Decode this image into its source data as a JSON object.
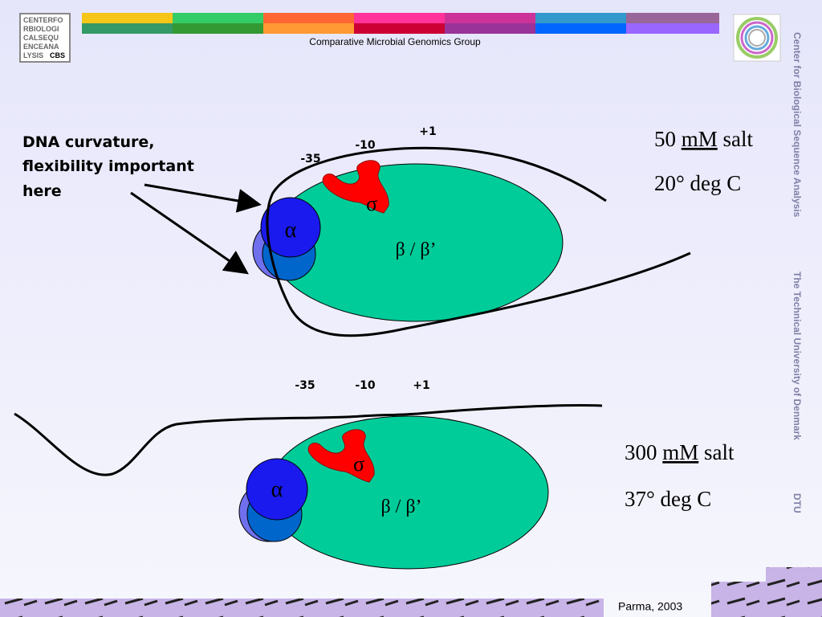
{
  "header": {
    "logo_lines": [
      "CENTERFO",
      "RBIOLOGI",
      "CALSEQU",
      "ENCEANA",
      "LYSIS"
    ],
    "logo_tag": "CBS",
    "group": "Comparative Microbial Genomics Group"
  },
  "sidebar": {
    "center": "Center for Biological Sequence Analysis",
    "university": "The Technical University of Denmark",
    "short": "DTU"
  },
  "annotation": {
    "lines": [
      "DNA curvature,",
      "flexibility important",
      "here"
    ]
  },
  "panels": [
    {
      "positions": [
        "-35",
        "-10",
        "+1"
      ],
      "sigma": "σ",
      "alpha": "α",
      "beta": "β / β’",
      "salt_value": "50",
      "salt_unit": "mM",
      "salt_word": "salt",
      "temperature": "20° deg C"
    },
    {
      "positions": [
        "-35",
        "-10",
        "+1"
      ],
      "sigma": "σ",
      "alpha": "α",
      "beta": "β / β’",
      "salt_value": "300",
      "salt_unit": "mM",
      "salt_word": "salt",
      "temperature": "37° deg C"
    }
  ],
  "footer": {
    "credit": "Parma, 2003"
  }
}
